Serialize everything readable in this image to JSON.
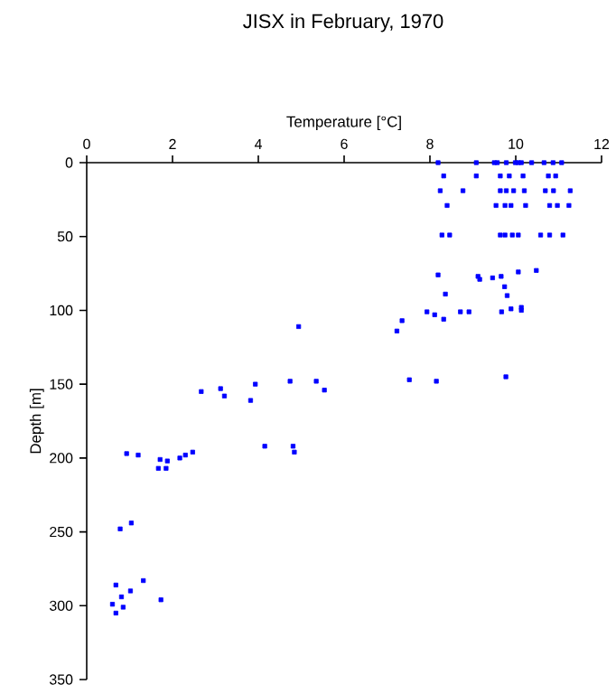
{
  "chart_data": {
    "type": "scatter",
    "title": "JISX in February, 1970",
    "xlabel": "Temperature [°C]",
    "ylabel": "Depth [m]",
    "xlim": [
      0,
      12
    ],
    "xticks": [
      0,
      2,
      4,
      6,
      8,
      10,
      12
    ],
    "ylim": [
      350,
      0
    ],
    "yticks": [
      0,
      50,
      100,
      150,
      200,
      250,
      300,
      350
    ],
    "marker": "square",
    "color": "#0000ff",
    "x": [
      8.19,
      9.08,
      9.5,
      9.57,
      9.78,
      9.99,
      10.06,
      10.13,
      10.37,
      10.66,
      10.87,
      11.07,
      8.32,
      9.08,
      9.64,
      9.85,
      10.17,
      10.76,
      10.93,
      8.24,
      8.77,
      9.64,
      9.78,
      9.95,
      10.2,
      10.69,
      10.88,
      11.27,
      8.4,
      9.54,
      9.75,
      9.89,
      10.23,
      10.79,
      10.97,
      11.24,
      8.28,
      8.46,
      9.64,
      9.75,
      9.92,
      10.06,
      10.58,
      10.79,
      11.1,
      8.19,
      9.12,
      9.46,
      9.66,
      10.06,
      10.48,
      9.16,
      9.74,
      9.8,
      8.36,
      7.93,
      8.11,
      8.32,
      8.71,
      8.91,
      9.67,
      9.89,
      10.13,
      10.13,
      7.35,
      7.23,
      4.94,
      7.52,
      8.15,
      9.77,
      2.67,
      3.12,
      3.21,
      3.93,
      3.82,
      4.74,
      5.35,
      5.54,
      4.15,
      4.81,
      4.84,
      0.93,
      1.2,
      1.71,
      1.67,
      1.88,
      1.85,
      2.17,
      2.3,
      2.47,
      0.78,
      1.04,
      0.68,
      1.32,
      1.02,
      0.81,
      1.73,
      0.6,
      0.85,
      0.68
    ],
    "values": [
      0,
      0,
      0,
      0,
      0,
      0,
      0,
      0,
      0,
      0,
      0,
      0,
      9,
      9,
      9,
      9,
      9,
      9,
      9,
      19,
      19,
      19,
      19,
      19,
      19,
      19,
      19,
      19,
      29,
      29,
      29,
      29,
      29,
      29,
      29,
      29,
      49,
      49,
      49,
      49,
      49,
      49,
      49,
      49,
      49,
      76,
      77,
      78,
      77,
      74,
      73,
      79,
      84,
      90,
      89,
      101,
      103,
      106,
      101,
      101,
      101,
      99,
      98,
      100,
      107,
      114,
      111,
      147,
      148,
      145,
      155,
      153,
      158,
      150,
      161,
      148,
      148,
      154,
      192,
      192,
      196,
      197,
      198,
      201,
      207,
      202,
      207,
      200,
      198,
      196,
      248,
      244,
      286,
      283,
      290,
      294,
      296,
      299,
      301,
      305
    ]
  }
}
